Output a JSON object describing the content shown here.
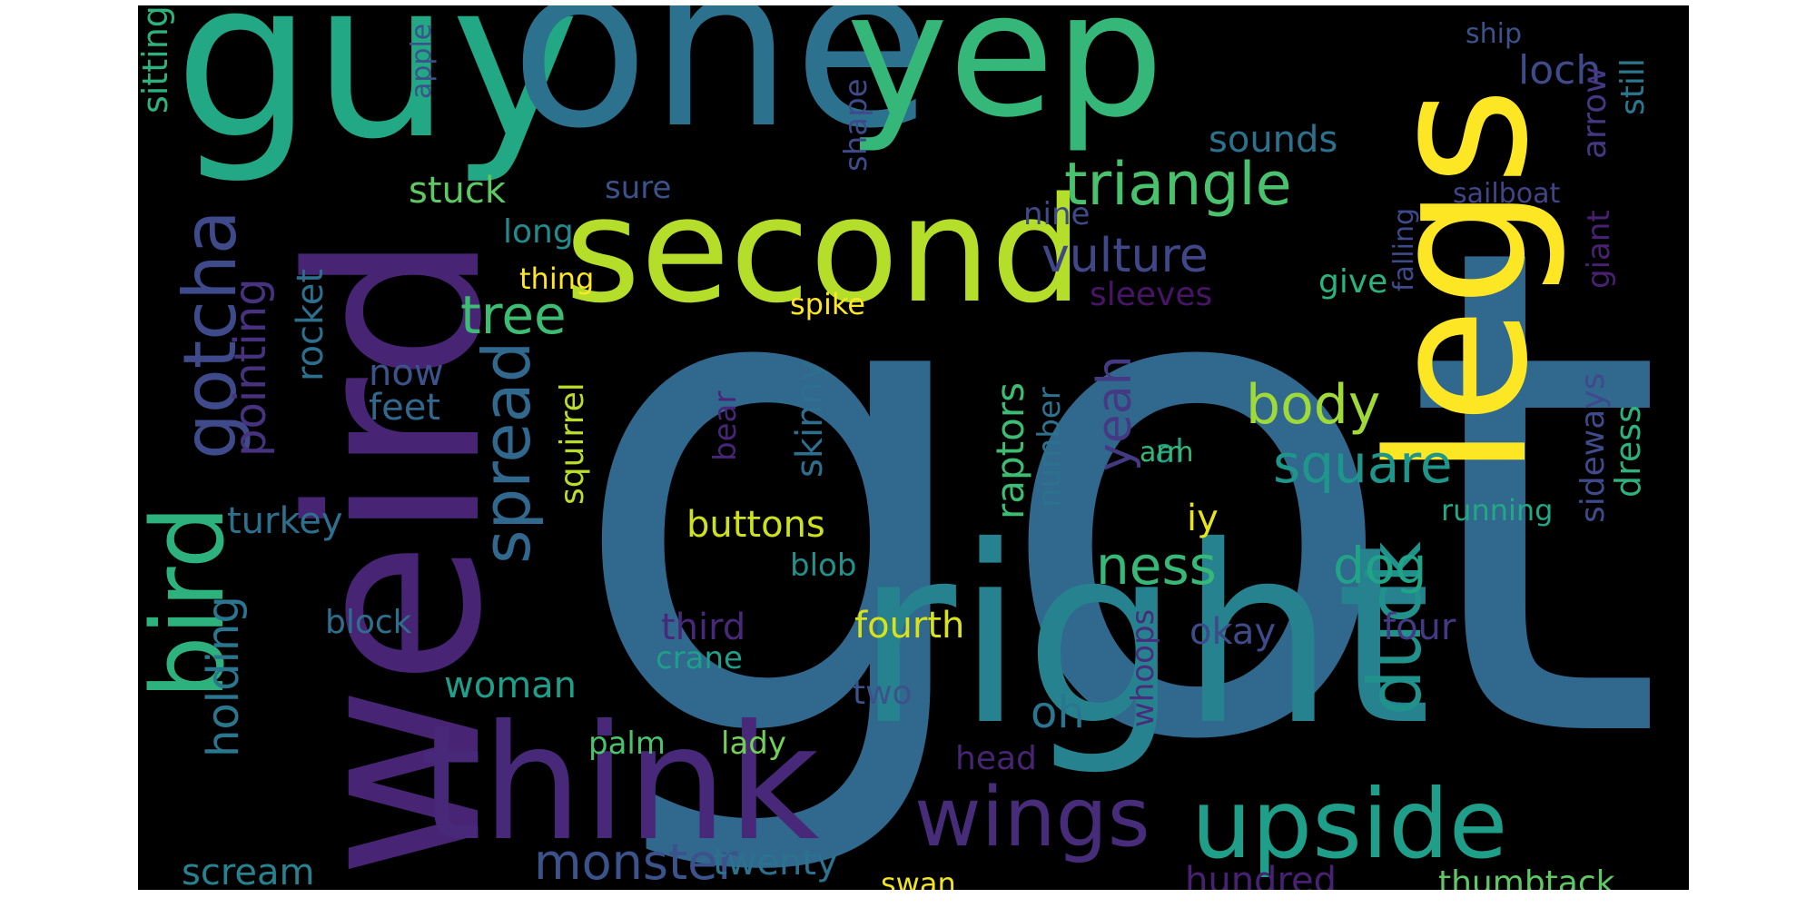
{
  "words": [
    {
      "text": "got",
      "color": "#31688e",
      "rotated": false
    },
    {
      "text": "right",
      "color": "#26828e",
      "rotated": false
    },
    {
      "text": "weird",
      "color": "#482475",
      "rotated": true
    },
    {
      "text": "guy",
      "color": "#22a884",
      "rotated": false
    },
    {
      "text": "one",
      "color": "#2c728e",
      "rotated": false
    },
    {
      "text": "yep",
      "color": "#35b779",
      "rotated": false
    },
    {
      "text": "legs",
      "color": "#fde725",
      "rotated": true
    },
    {
      "text": "think",
      "color": "#482878",
      "rotated": false
    },
    {
      "text": "second",
      "color": "#b5de2b",
      "rotated": false
    },
    {
      "text": "bird",
      "color": "#2db27d",
      "rotated": true
    },
    {
      "text": "gotcha",
      "color": "#3e4a89",
      "rotated": true
    },
    {
      "text": "spread",
      "color": "#31688e",
      "rotated": true
    },
    {
      "text": "upside",
      "color": "#1f9e89",
      "rotated": false
    },
    {
      "text": "wings",
      "color": "#472c7a",
      "rotated": false
    },
    {
      "text": "duck",
      "color": "#21918c",
      "rotated": true
    },
    {
      "text": "triangle",
      "color": "#4ac16d",
      "rotated": false
    },
    {
      "text": "monster",
      "color": "#3b528b",
      "rotated": false
    },
    {
      "text": "tree",
      "color": "#3dbc74",
      "rotated": false
    },
    {
      "text": "body",
      "color": "#a0da39",
      "rotated": false
    },
    {
      "text": "square",
      "color": "#1f968b",
      "rotated": false
    },
    {
      "text": "vulture",
      "color": "#3f4788",
      "rotated": false
    },
    {
      "text": "ness",
      "color": "#37b878",
      "rotated": false
    },
    {
      "text": "yeah",
      "color": "#443983",
      "rotated": true
    },
    {
      "text": "dog",
      "color": "#20a386",
      "rotated": false
    },
    {
      "text": "oh",
      "color": "#2a768e",
      "rotated": false
    },
    {
      "text": "holding",
      "color": "#2a768e",
      "rotated": true
    },
    {
      "text": "pointing",
      "color": "#46327e",
      "rotated": true
    },
    {
      "text": "sitting",
      "color": "#2db27d",
      "rotated": true
    },
    {
      "text": "stuck",
      "color": "#5ec962",
      "rotated": false
    },
    {
      "text": "long",
      "color": "#238a8d",
      "rotated": false
    },
    {
      "text": "thing",
      "color": "#fde725",
      "rotated": false
    },
    {
      "text": "rocket",
      "color": "#2d708e",
      "rotated": true
    },
    {
      "text": "now",
      "color": "#3b528b",
      "rotated": false
    },
    {
      "text": "feet",
      "color": "#31688e",
      "rotated": false
    },
    {
      "text": "turkey",
      "color": "#2d708e",
      "rotated": false
    },
    {
      "text": "block",
      "color": "#2e6e8e",
      "rotated": false
    },
    {
      "text": "woman",
      "color": "#1f9e89",
      "rotated": false
    },
    {
      "text": "scream",
      "color": "#26828e",
      "rotated": false
    },
    {
      "text": "squirrel",
      "color": "#b8de29",
      "rotated": true
    },
    {
      "text": "buttons",
      "color": "#cde11d",
      "rotated": false
    },
    {
      "text": "third",
      "color": "#482878",
      "rotated": false
    },
    {
      "text": "crane",
      "color": "#1f9e89",
      "rotated": false
    },
    {
      "text": "palm",
      "color": "#4ac16d",
      "rotated": false
    },
    {
      "text": "lady",
      "color": "#73d056",
      "rotated": false
    },
    {
      "text": "twenty",
      "color": "#2c728e",
      "rotated": false
    },
    {
      "text": "swan",
      "color": "#f1e51d",
      "rotated": false
    },
    {
      "text": "fourth",
      "color": "#d8e219",
      "rotated": false
    },
    {
      "text": "two",
      "color": "#3b528b",
      "rotated": false
    },
    {
      "text": "head",
      "color": "#482475",
      "rotated": false
    },
    {
      "text": "hundred",
      "color": "#482173",
      "rotated": false
    },
    {
      "text": "thumbtack",
      "color": "#5ec962",
      "rotated": false
    },
    {
      "text": "four",
      "color": "#443983",
      "rotated": false
    },
    {
      "text": "okay",
      "color": "#3e4a89",
      "rotated": false
    },
    {
      "text": "whoops",
      "color": "#472d7b",
      "rotated": true
    },
    {
      "text": "iy",
      "color": "#e7e419",
      "rotated": false
    },
    {
      "text": "al",
      "color": "#1f9e89",
      "rotated": false
    },
    {
      "text": "arm",
      "color": "#35b779",
      "rotated": false
    },
    {
      "text": "raptors",
      "color": "#3dbc74",
      "rotated": true
    },
    {
      "text": "number",
      "color": "#2c728e",
      "rotated": true
    },
    {
      "text": "skinny",
      "color": "#2e6e8e",
      "rotated": true
    },
    {
      "text": "bear",
      "color": "#482677",
      "rotated": true
    },
    {
      "text": "blob",
      "color": "#21918c",
      "rotated": false
    },
    {
      "text": "spike",
      "color": "#fde725",
      "rotated": false
    },
    {
      "text": "sleeves",
      "color": "#481467",
      "rotated": false
    },
    {
      "text": "nine",
      "color": "#3e4a89",
      "rotated": false
    },
    {
      "text": "sure",
      "color": "#3b528b",
      "rotated": false
    },
    {
      "text": "shape",
      "color": "#3e4a89",
      "rotated": true
    },
    {
      "text": "apple",
      "color": "#3b528b",
      "rotated": true
    },
    {
      "text": "sounds",
      "color": "#2c728e",
      "rotated": false
    },
    {
      "text": "ship",
      "color": "#3b528b",
      "rotated": false
    },
    {
      "text": "loch",
      "color": "#3e4a89",
      "rotated": false
    },
    {
      "text": "arrow",
      "color": "#453781",
      "rotated": true
    },
    {
      "text": "still",
      "color": "#2a788e",
      "rotated": true
    },
    {
      "text": "sailboat",
      "color": "#414487",
      "rotated": false
    },
    {
      "text": "giant",
      "color": "#482173",
      "rotated": true
    },
    {
      "text": "falling",
      "color": "#3e4a89",
      "rotated": true
    },
    {
      "text": "give",
      "color": "#2db27d",
      "rotated": false
    },
    {
      "text": "running",
      "color": "#22a884",
      "rotated": false
    },
    {
      "text": "sideways",
      "color": "#3e4a89",
      "rotated": true
    },
    {
      "text": "dress",
      "color": "#2db27d",
      "rotated": true
    }
  ]
}
